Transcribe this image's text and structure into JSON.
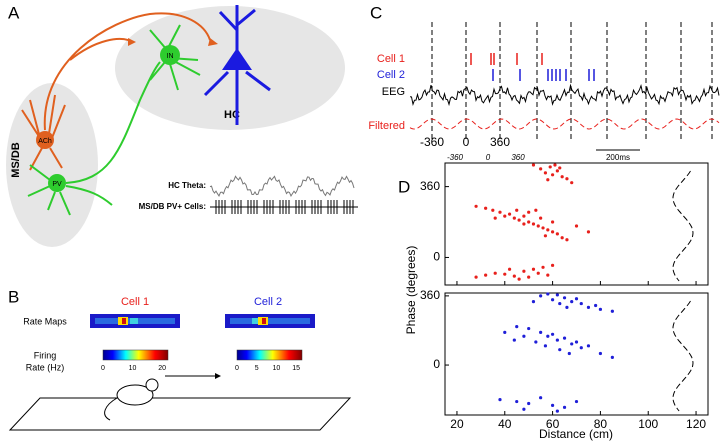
{
  "panel_a": {
    "label": "A",
    "regions": [
      "MS/DB",
      "HC"
    ],
    "cells": [
      "ACh",
      "PV",
      "IN"
    ],
    "trace_labels": [
      "HC Theta:",
      "MS/DB PV+ Cells:"
    ]
  },
  "panel_b": {
    "label": "B",
    "cell_names": [
      "Cell 1",
      "Cell 2"
    ],
    "row_labels": [
      "Rate Maps",
      "Firing",
      "Rate (Hz)"
    ],
    "colorbar_ticks": [
      [
        0,
        10,
        20
      ],
      [
        0,
        5,
        10,
        15
      ]
    ]
  },
  "panel_c": {
    "label": "C",
    "trace_labels": [
      "Cell 1",
      "Cell 2",
      "EEG",
      "Filtered"
    ],
    "phase_labels": [
      -360,
      0,
      360
    ],
    "phase_labels_small": [
      -360,
      0,
      360
    ],
    "scale_bar": "200ms"
  },
  "panel_d": {
    "label": "D",
    "ylabel": "Phase (degrees)",
    "xlabel": "Distance (cm)",
    "xlim": [
      15,
      125
    ],
    "xticks": [
      20,
      40,
      60,
      80,
      100,
      120
    ],
    "plots": [
      {
        "color": "#e8201c",
        "ylim": [
          -140,
          480
        ],
        "yticks": [
          0,
          360
        ],
        "x": [
          52,
          55,
          57,
          59,
          60,
          62,
          64,
          66,
          68,
          58,
          61,
          63,
          28,
          32,
          35,
          38,
          40,
          42,
          44,
          46,
          48,
          50,
          52,
          54,
          56,
          58,
          60,
          62,
          64,
          66,
          45,
          50,
          55,
          60,
          70,
          75,
          48,
          53,
          57,
          36,
          28,
          32,
          36,
          40,
          44,
          48,
          50,
          52,
          54,
          56,
          58,
          60,
          46,
          42
        ],
        "y": [
          470,
          450,
          430,
          460,
          420,
          440,
          410,
          400,
          380,
          395,
          470,
          455,
          260,
          250,
          240,
          230,
          210,
          220,
          200,
          190,
          210,
          180,
          170,
          160,
          150,
          140,
          130,
          120,
          100,
          90,
          240,
          230,
          200,
          180,
          160,
          130,
          170,
          240,
          110,
          200,
          -100,
          -90,
          -80,
          -85,
          -95,
          -70,
          -100,
          -60,
          -80,
          -50,
          -90,
          -40,
          -110,
          -60
        ]
      },
      {
        "color": "#1f1fd8",
        "ylim": [
          -260,
          375
        ],
        "yticks": [
          0,
          360
        ],
        "x": [
          55,
          58,
          60,
          62,
          65,
          68,
          70,
          72,
          75,
          78,
          80,
          85,
          63,
          66,
          52,
          45,
          50,
          55,
          58,
          60,
          62,
          65,
          68,
          70,
          72,
          75,
          80,
          85,
          48,
          53,
          57,
          63,
          67,
          40,
          44,
          38,
          45,
          50,
          55,
          60,
          65,
          70,
          62,
          48
        ],
        "y": [
          360,
          370,
          340,
          365,
          350,
          330,
          345,
          320,
          300,
          310,
          290,
          280,
          320,
          300,
          330,
          200,
          190,
          170,
          150,
          160,
          130,
          140,
          110,
          120,
          90,
          100,
          60,
          40,
          150,
          120,
          100,
          80,
          60,
          170,
          130,
          -180,
          -190,
          -200,
          -170,
          -210,
          -220,
          -190,
          -240,
          -230
        ]
      }
    ]
  }
}
